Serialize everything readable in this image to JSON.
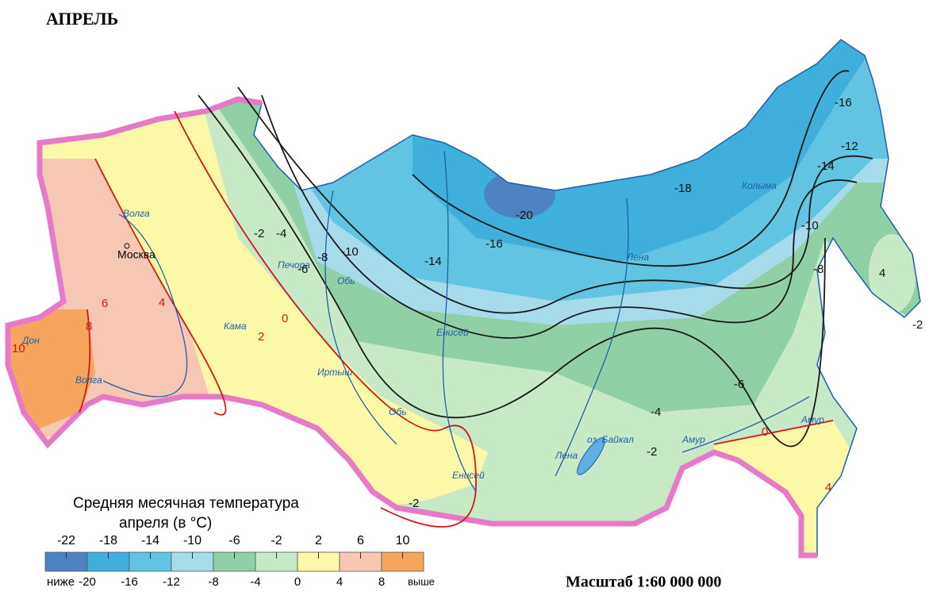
{
  "title": "АПРЕЛЬ",
  "legend": {
    "title_lines": [
      "Средняя месячная температура",
      "апреля  (в °С)"
    ],
    "class_labels": [
      "-22",
      "-18",
      "-14",
      "-10",
      "-6",
      "-2",
      "2",
      "6",
      "10"
    ],
    "boundary_labels": [
      "ниже",
      "-20",
      "-16",
      "-12",
      "-8",
      "-4",
      "0",
      "4",
      "8",
      "выше"
    ],
    "colors": [
      "#4d83c0",
      "#3fb0db",
      "#62c4e2",
      "#a6dcea",
      "#8fd0a6",
      "#c8e9c6",
      "#fbf9a8",
      "#f6c7b3",
      "#f6a55f"
    ]
  },
  "scale": "Масштаб 1:60 000 000",
  "places": {
    "city": "Москва",
    "lake": "оз. Байкал"
  },
  "rivers": [
    "Волга",
    "Дон",
    "Волга",
    "Кама",
    "Печора",
    "Обь",
    "Иртыш",
    "Обь",
    "Енисей",
    "Енисей",
    "Лена",
    "Лена",
    "Амур",
    "Колыма",
    "Амур"
  ],
  "isotherms": [
    "-20",
    "-18",
    "-16",
    "-16",
    "-14",
    "-14",
    "-12",
    "-10",
    "-10",
    "-8",
    "-8",
    "-6",
    "-6",
    "-4",
    "-4",
    "-2",
    "-2",
    "-2",
    "-2",
    "0",
    "2",
    "4",
    "6",
    "8",
    "10",
    "0",
    "4",
    "4"
  ]
}
